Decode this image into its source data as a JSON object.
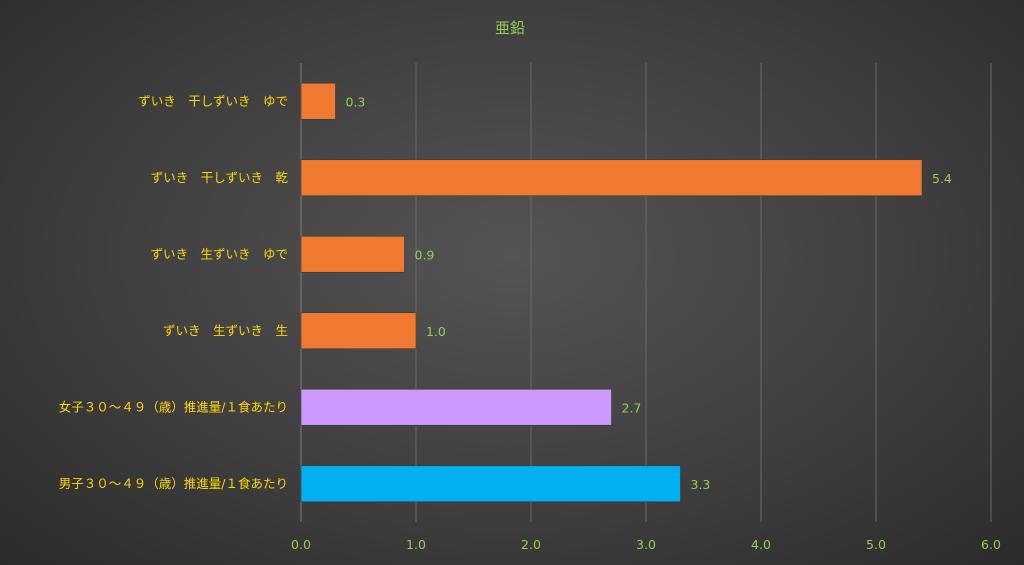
{
  "chart_data": {
    "type": "bar",
    "orientation": "horizontal",
    "title": "亜鉛",
    "categories": [
      "ずいき　干しずいき　ゆで",
      "ずいき　干しずいき　乾",
      "ずいき　生ずいき　ゆで",
      "ずいき　生ずいき　生",
      "女子３０～４９（歳）推進量/１食あたり",
      "男子３０～４９（歳）推進量/１食あたり"
    ],
    "values": [
      0.3,
      5.4,
      0.9,
      1.0,
      2.7,
      3.3
    ],
    "value_labels": [
      "0.3",
      "5.4",
      "0.9",
      "1.0",
      "2.7",
      "3.3"
    ],
    "bar_colors": [
      "#f07a30",
      "#f07a30",
      "#f07a30",
      "#f07a30",
      "#cc99ff",
      "#00b0f0"
    ],
    "xlim": [
      0,
      6
    ],
    "ticks": [
      "0.0",
      "1.0",
      "2.0",
      "3.0",
      "4.0",
      "5.0",
      "6.0"
    ],
    "grid": true,
    "legend": "none"
  }
}
